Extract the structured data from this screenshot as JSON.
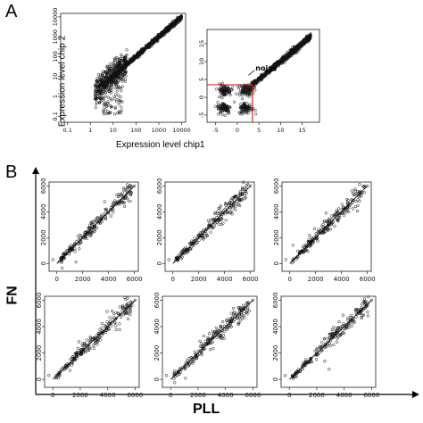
{
  "figure": {
    "panel_a_label": "A",
    "panel_b_label": "B",
    "panel_a_xlabel": "Expression level chip1",
    "panel_a_ylabel": "Expression level chip 2",
    "panel_b_xlabel": "PLL",
    "panel_b_ylabel": "FN"
  },
  "chart_data": [
    {
      "id": "A1",
      "type": "scatter",
      "log_scale": true,
      "xticks": [
        "0.1",
        "1",
        "10",
        "100",
        "1000",
        "10000"
      ],
      "yticks": [
        "0.1",
        "1",
        "10",
        "100",
        "1000",
        "10000"
      ],
      "xlim": [
        0.05,
        15000
      ],
      "ylim": [
        0.05,
        15000
      ],
      "xlabel": "",
      "ylabel": "",
      "point_pattern": "dense diagonal x≈y from ~3 to 10000; broad noisy cloud below ~30"
    },
    {
      "id": "A2",
      "type": "scatter",
      "log_scale": false,
      "xticks": [
        "-5",
        "0",
        "5",
        "10",
        "15"
      ],
      "yticks": [
        "-5",
        "0",
        "5",
        "10",
        "15"
      ],
      "xlim": [
        -7,
        19
      ],
      "ylim": [
        -7,
        19
      ],
      "annotation": "noise",
      "noise_box": {
        "x": [
          -7,
          3.5
        ],
        "y": [
          -7,
          3.5
        ]
      },
      "point_pattern": "diagonal x≈y from ~2 to 17; four clusters near (-3,-3),(2,-3),(-3,2),(2,2)"
    },
    {
      "id": "B1",
      "type": "scatter",
      "xticks": [
        "0",
        "2000",
        "4000",
        "6000"
      ],
      "yticks": [
        "0",
        "2000",
        "4000",
        "6000"
      ],
      "xlim": [
        -600,
        6300
      ],
      "ylim": [
        -600,
        6300
      ],
      "fit_line": [
        [
          0,
          0
        ],
        [
          6000,
          6000
        ]
      ]
    },
    {
      "id": "B2",
      "type": "scatter",
      "xticks": [
        "0",
        "2000",
        "4000",
        "6000"
      ],
      "yticks": [
        "0",
        "2000",
        "4000",
        "6000"
      ],
      "xlim": [
        -600,
        6300
      ],
      "ylim": [
        -600,
        6300
      ],
      "fit_line": [
        [
          0,
          0
        ],
        [
          6000,
          6000
        ]
      ]
    },
    {
      "id": "B3",
      "type": "scatter",
      "xticks": [
        "0",
        "2000",
        "4000",
        "6000"
      ],
      "yticks": [
        "0",
        "2000",
        "4000",
        "6000"
      ],
      "xlim": [
        -600,
        6300
      ],
      "ylim": [
        -600,
        6300
      ],
      "fit_line": [
        [
          0,
          0
        ],
        [
          6000,
          6000
        ]
      ]
    },
    {
      "id": "B4",
      "type": "scatter",
      "xticks": [
        "0",
        "2000",
        "4000",
        "6000"
      ],
      "yticks": [
        "0",
        "2000",
        "4000",
        "6000"
      ],
      "xlim": [
        -600,
        6300
      ],
      "ylim": [
        -600,
        6300
      ],
      "fit_line": [
        [
          0,
          0
        ],
        [
          6000,
          6000
        ]
      ]
    },
    {
      "id": "B5",
      "type": "scatter",
      "xticks": [
        "0",
        "2000",
        "4000",
        "6000"
      ],
      "yticks": [
        "0",
        "2000",
        "4000",
        "6000"
      ],
      "xlim": [
        -600,
        6300
      ],
      "ylim": [
        -600,
        6300
      ],
      "fit_line": [
        [
          0,
          0
        ],
        [
          6000,
          6000
        ]
      ]
    },
    {
      "id": "B6",
      "type": "scatter",
      "xticks": [
        "0",
        "2000",
        "4000",
        "6000"
      ],
      "yticks": [
        "0",
        "2000",
        "4000",
        "6000"
      ],
      "xlim": [
        -600,
        6300
      ],
      "ylim": [
        -600,
        6300
      ],
      "fit_line": [
        [
          0,
          0
        ],
        [
          6000,
          6000
        ]
      ]
    }
  ]
}
